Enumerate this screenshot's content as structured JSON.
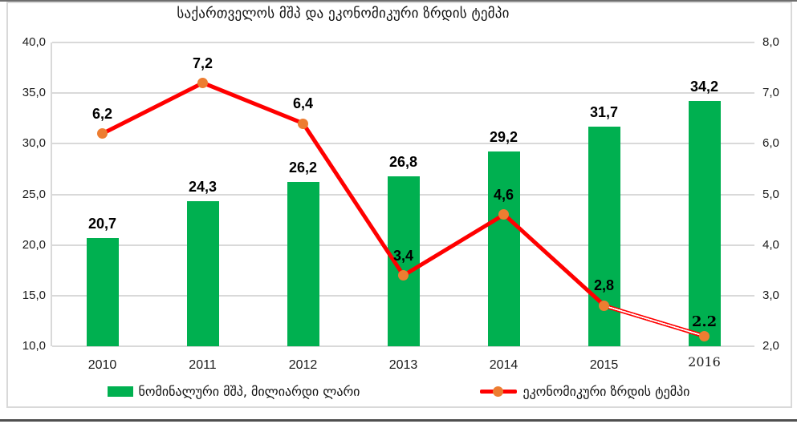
{
  "title": "საქართველოს მშპ და ეკონომიკური ზრდის ტემპი",
  "chart_data": {
    "type": "combo",
    "categories": [
      "2010",
      "2011",
      "2012",
      "2013",
      "2014",
      "2015",
      "2016"
    ],
    "series": [
      {
        "name": "ნომინალური მშპ, მილიარდი ლარი",
        "chart_type": "bar",
        "axis": "left",
        "color": "#00B050",
        "values": [
          20.7,
          24.3,
          26.2,
          26.8,
          29.2,
          31.7,
          34.2
        ],
        "labels": [
          "20,7",
          "24,3",
          "26,2",
          "26,8",
          "29,2",
          "31,7",
          "34,2"
        ]
      },
      {
        "name": "ეკონომიკური ზრდის ტემპი",
        "chart_type": "line",
        "axis": "right",
        "color": "#FF0000",
        "marker_color": "#ED7D31",
        "values": [
          6.2,
          7.2,
          6.4,
          3.4,
          4.6,
          2.8,
          2.2
        ],
        "labels": [
          "6,2",
          "7,2",
          "6,4",
          "3,4",
          "4,6",
          "2,8",
          "2.2"
        ],
        "last_segment_striped": true,
        "alt_font_label_index": 6
      }
    ],
    "left_axis": {
      "min": 10,
      "max": 40,
      "step": 5,
      "tick_labels": [
        "40,0",
        "35,0",
        "30,0",
        "25,0",
        "20,0",
        "15,0",
        "10,0"
      ]
    },
    "right_axis": {
      "min": 2,
      "max": 8,
      "step": 1,
      "tick_labels": [
        "8,0",
        "7,0",
        "6,0",
        "5,0",
        "4,0",
        "3,0",
        "2,0"
      ]
    },
    "x_axis": {
      "alt_font_index": 6
    },
    "grid": true,
    "gridline_color": "#D9D9D9",
    "legend_position": "bottom",
    "decimal_separator": ","
  }
}
